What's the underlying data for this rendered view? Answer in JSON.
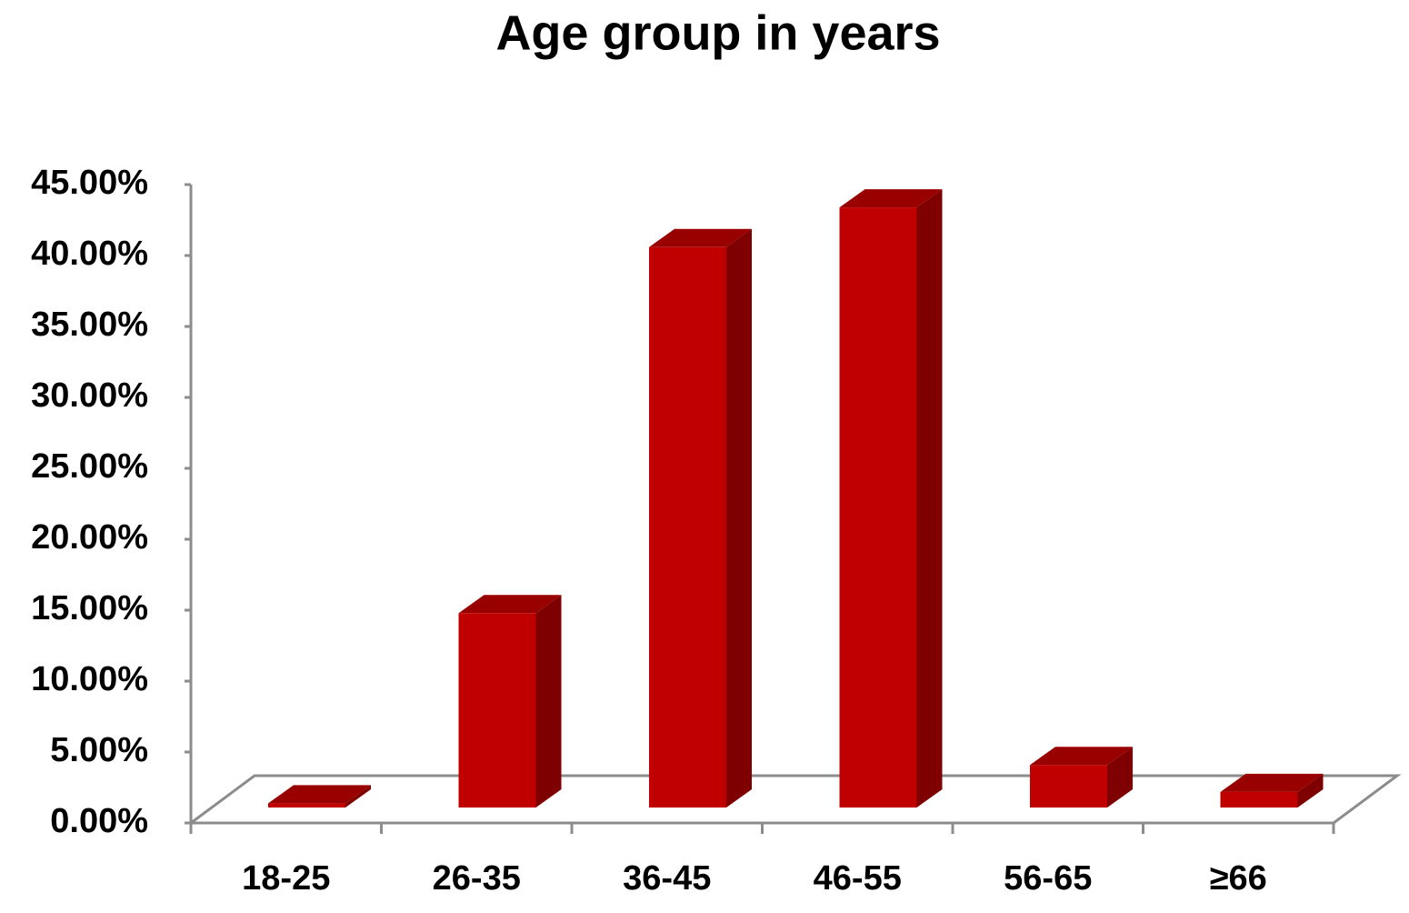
{
  "chart_data": {
    "type": "bar3d",
    "title": "Age group in years",
    "categories": [
      "18-25",
      "26-35",
      "36-45",
      "46-55",
      "56-65",
      "≥66"
    ],
    "values": [
      0.3,
      13.7,
      39.5,
      42.3,
      3.0,
      1.1
    ],
    "color": "#c00000",
    "ylim": [
      0,
      45
    ],
    "yticks": [
      {
        "value": 0,
        "label": "0.00%"
      },
      {
        "value": 5,
        "label": "5.00%"
      },
      {
        "value": 10,
        "label": "10.00%"
      },
      {
        "value": 15,
        "label": "15.00%"
      },
      {
        "value": 20,
        "label": "20.00%"
      },
      {
        "value": 25,
        "label": "25.00%"
      },
      {
        "value": 30,
        "label": "30.00%"
      },
      {
        "value": 35,
        "label": "35.00%"
      },
      {
        "value": 40,
        "label": "40.00%"
      },
      {
        "value": 45,
        "label": "45.00%"
      }
    ]
  }
}
